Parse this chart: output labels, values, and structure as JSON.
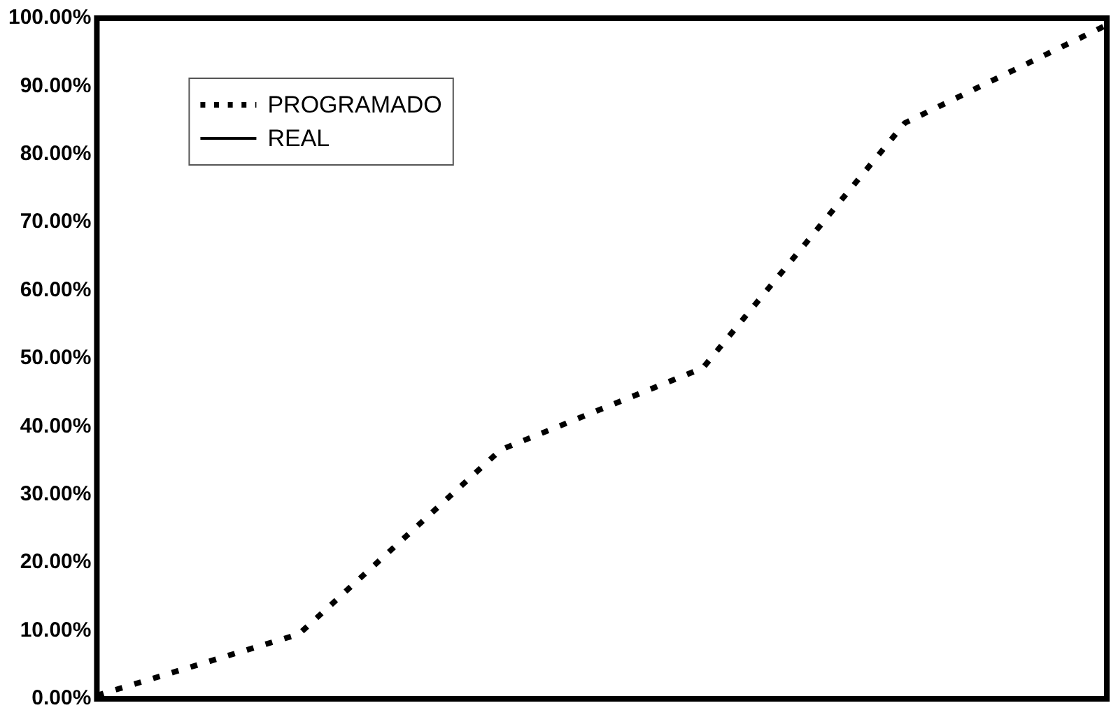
{
  "chart_data": {
    "type": "line",
    "categories": [
      null,
      null,
      null,
      null,
      null,
      null
    ],
    "series": [
      {
        "name": "PROGRAMADO",
        "color": "#000000",
        "line_style": "dashed",
        "values": [
          0.5,
          9.5,
          36.6,
          48.6,
          84.6,
          99
        ]
      },
      {
        "name": "REAL",
        "color": "#000000",
        "line_style": "solid",
        "values": [
          null,
          null,
          null,
          null,
          null,
          null
        ]
      }
    ],
    "ylim": [
      0,
      100
    ],
    "yticks": [
      {
        "value": 0,
        "label": "0.00%"
      },
      {
        "value": 10,
        "label": "10.00%"
      },
      {
        "value": 20,
        "label": "20.00%"
      },
      {
        "value": 30,
        "label": "30.00%"
      },
      {
        "value": 40,
        "label": "40.00%"
      },
      {
        "value": 50,
        "label": "50.00%"
      },
      {
        "value": 60,
        "label": "60.00%"
      },
      {
        "value": 70,
        "label": "70.00%"
      },
      {
        "value": 80,
        "label": "80.00%"
      },
      {
        "value": 90,
        "label": "90.00%"
      },
      {
        "value": 100,
        "label": "100.00%"
      }
    ],
    "grid": false,
    "legend": "top left",
    "tick_labels": "y",
    "marker": "none"
  }
}
